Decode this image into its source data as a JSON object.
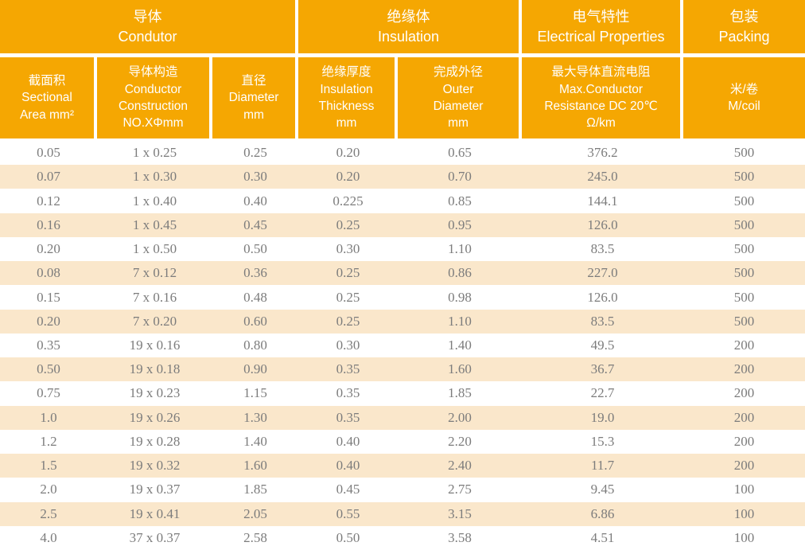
{
  "colors": {
    "header_orange": "#F5A702",
    "stripe_cream": "#FAE7CB",
    "data_text_gray": "#7C7C7C",
    "header_text": "#FFFFFF",
    "divider": "#FFFFFF"
  },
  "table": {
    "group_headers": [
      {
        "zh": "导体",
        "en": "Condutor"
      },
      {
        "zh": "绝缘体",
        "en": "Insulation"
      },
      {
        "zh": "电气特性",
        "en": "Electrical Properties"
      },
      {
        "zh": "包装",
        "en": "Packing"
      }
    ],
    "column_headers": [
      "截面积\nSectional\nArea mm²",
      "导体构造\nConductor\nConstruction\nNO.XΦmm",
      "直径\nDiameter\nmm",
      "绝缘厚度\nInsulation\nThickness\nmm",
      "完成外径\nOuter\nDiameter\nmm",
      "最大导体直流电阻\nMax.Conductor\nResistance DC 20℃\nΩ/km",
      "米/卷\nM/coil"
    ],
    "rows": [
      [
        "0.05",
        "1 x 0.25",
        "0.25",
        "0.20",
        "0.65",
        "376.2",
        "500"
      ],
      [
        "0.07",
        "1 x 0.30",
        "0.30",
        "0.20",
        "0.70",
        "245.0",
        "500"
      ],
      [
        "0.12",
        "1 x 0.40",
        "0.40",
        "0.225",
        "0.85",
        "144.1",
        "500"
      ],
      [
        "0.16",
        "1 x 0.45",
        "0.45",
        "0.25",
        "0.95",
        "126.0",
        "500"
      ],
      [
        "0.20",
        "1 x 0.50",
        "0.50",
        "0.30",
        "1.10",
        "83.5",
        "500"
      ],
      [
        "0.08",
        "7 x 0.12",
        "0.36",
        "0.25",
        "0.86",
        "227.0",
        "500"
      ],
      [
        "0.15",
        "7 x 0.16",
        "0.48",
        "0.25",
        "0.98",
        "126.0",
        "500"
      ],
      [
        "0.20",
        "7 x 0.20",
        "0.60",
        "0.25",
        "1.10",
        "83.5",
        "500"
      ],
      [
        "0.35",
        "19 x 0.16",
        "0.80",
        "0.30",
        "1.40",
        "49.5",
        "200"
      ],
      [
        "0.50",
        "19 x 0.18",
        "0.90",
        "0.35",
        "1.60",
        "36.7",
        "200"
      ],
      [
        "0.75",
        "19 x 0.23",
        "1.15",
        "0.35",
        "1.85",
        "22.7",
        "200"
      ],
      [
        "1.0",
        "19 x 0.26",
        "1.30",
        "0.35",
        "2.00",
        "19.0",
        "200"
      ],
      [
        "1.2",
        "19 x 0.28",
        "1.40",
        "0.40",
        "2.20",
        "15.3",
        "200"
      ],
      [
        "1.5",
        "19 x 0.32",
        "1.60",
        "0.40",
        "2.40",
        "11.7",
        "200"
      ],
      [
        "2.0",
        "19 x 0.37",
        "1.85",
        "0.45",
        "2.75",
        "9.45",
        "100"
      ],
      [
        "2.5",
        "19 x 0.41",
        "2.05",
        "0.55",
        "3.15",
        "6.86",
        "100"
      ],
      [
        "4.0",
        "37 x 0.37",
        "2.58",
        "0.50",
        "3.58",
        "4.51",
        "100"
      ]
    ]
  }
}
